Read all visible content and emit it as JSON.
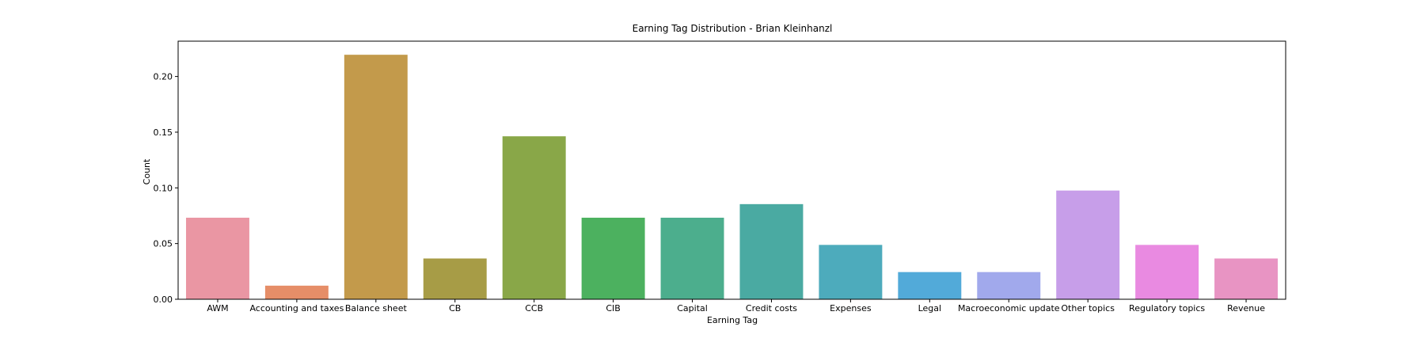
{
  "chart_data": {
    "type": "bar",
    "title": "Earning Tag Distribution - Brian Kleinhanzl",
    "xlabel": "Earning Tag",
    "ylabel": "Count",
    "ylim": [
      0,
      0.2317
    ],
    "yticks": [
      "0.00",
      "0.05",
      "0.10",
      "0.15",
      "0.20"
    ],
    "categories": [
      "AWM",
      "Accounting and taxes",
      "Balance sheet",
      "CB",
      "CCB",
      "CIB",
      "Capital",
      "Credit costs",
      "Expenses",
      "Legal",
      "Macroeconomic update",
      "Other topics",
      "Regulatory topics",
      "Revenue"
    ],
    "values": [
      0.0732,
      0.0122,
      0.2195,
      0.0366,
      0.1463,
      0.0732,
      0.0732,
      0.0854,
      0.0488,
      0.0244,
      0.0244,
      0.0976,
      0.0488,
      0.0366
    ],
    "colors": [
      "#ea96a3",
      "#e68e68",
      "#c39a4b",
      "#a79c46",
      "#89a748",
      "#4cb15f",
      "#4cae8d",
      "#4aaaa2",
      "#4dabbc",
      "#52aad9",
      "#a1a9ec",
      "#c79ee9",
      "#e98ae1",
      "#e894c3"
    ],
    "grid": false,
    "legend": "none"
  }
}
